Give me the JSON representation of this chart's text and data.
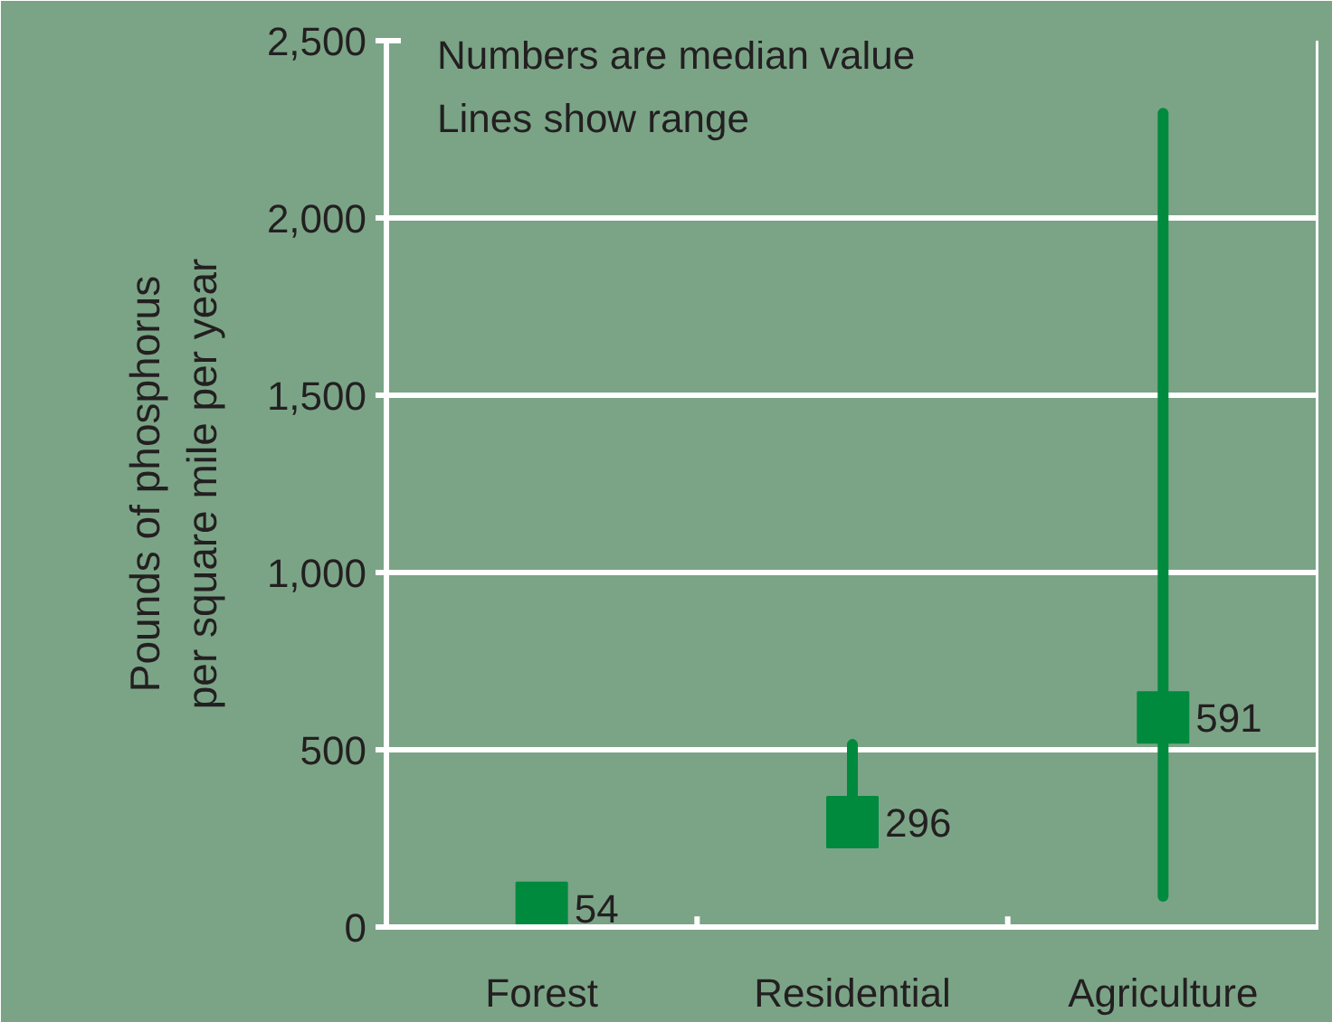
{
  "chart_data": {
    "type": "scatter",
    "ylabel": "Pounds of phosphorus\nper square mile per year",
    "categories": [
      "Forest",
      "Residential",
      "Agriculture"
    ],
    "series": [
      {
        "color": "#008a3e",
        "values": [
          54,
          296,
          591
        ],
        "errors": [
          null,
          [
            296,
            515
          ],
          [
            87,
            2295
          ]
        ]
      }
    ],
    "ylim": [
      0,
      2500
    ],
    "yticks": [
      0,
      500,
      {
        "value": 1000,
        "label": "1,000"
      },
      {
        "value": 1500,
        "label": "1,500"
      },
      {
        "value": 2000,
        "label": "2,000"
      },
      {
        "value": 2500,
        "label": "2,500"
      }
    ],
    "grid": "y",
    "marker": "square",
    "data_labels": true,
    "annotations": [
      "Numbers are median value",
      "Lines show range"
    ]
  }
}
